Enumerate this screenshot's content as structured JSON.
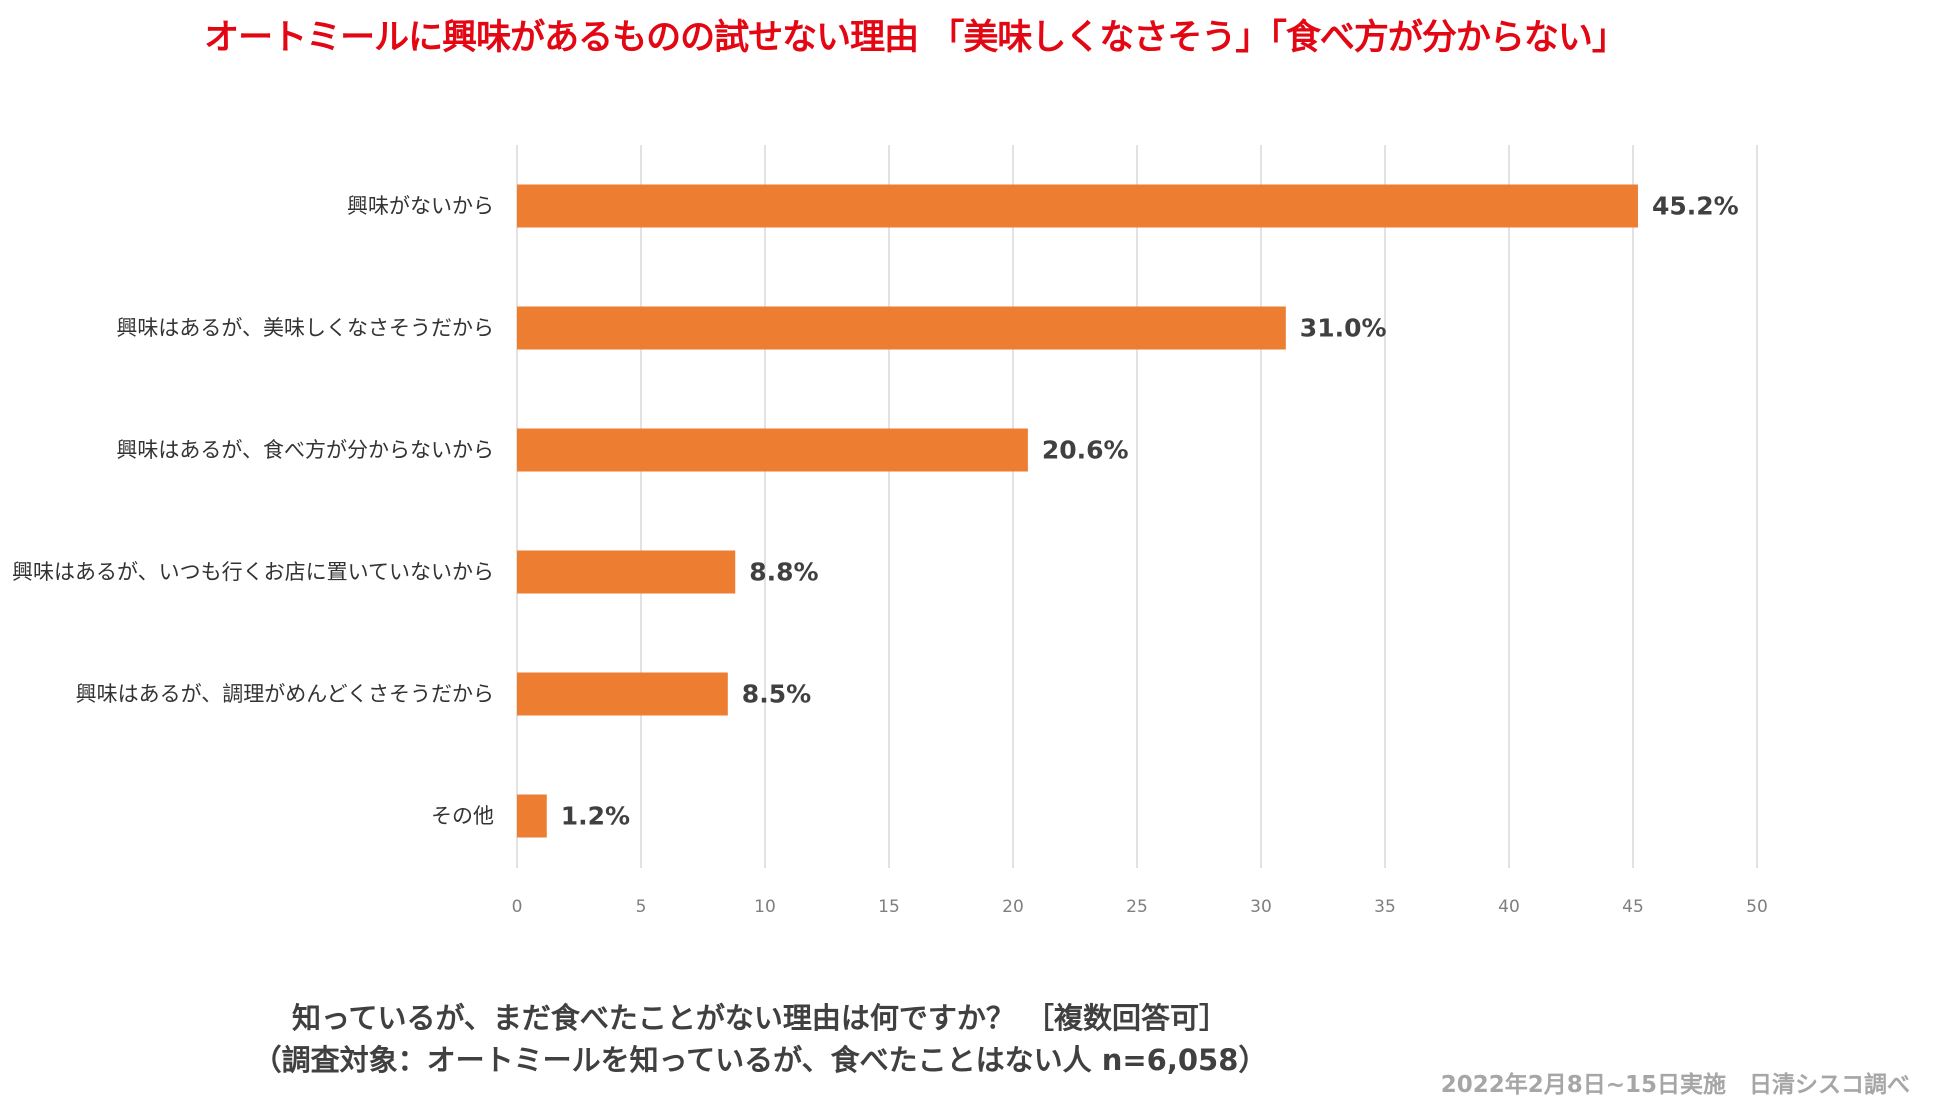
{
  "title": "オートミールに興味があるものの試せない理由 「美味しくなさそう」「食べ方が分からない」",
  "question": {
    "line1": "知っているが、まだ食べたことがない理由は何ですか？ ［複数回答可］",
    "line2": "（調査対象：オートミールを知っているが、食べたことはない人 n=6,058）"
  },
  "credit": "2022年2月8日~15日実施　日清シスコ調べ",
  "colors": {
    "bar": "#ed7d31",
    "grid": "#d9d9d9",
    "title": "#e30613"
  },
  "chart_data": {
    "type": "bar",
    "orientation": "horizontal",
    "categories": [
      "興味がないから",
      "興味はあるが、美味しくなさそうだから",
      "興味はあるが、食べ方が分からないから",
      "興味はあるが、いつも行くお店に置いていないから",
      "興味はあるが、調理がめんどくさそうだから",
      "その他"
    ],
    "values": [
      45.2,
      31.0,
      20.6,
      8.8,
      8.5,
      1.2
    ],
    "value_labels": [
      "45.2%",
      "31.0%",
      "20.6%",
      "8.8%",
      "8.5%",
      "1.2%"
    ],
    "xlim": [
      0,
      50
    ],
    "xticks": [
      0,
      5,
      10,
      15,
      20,
      25,
      30,
      35,
      40,
      45,
      50
    ],
    "tick_labels": [
      "0",
      "5",
      "10",
      "15",
      "20",
      "25",
      "30",
      "35",
      "40",
      "45",
      "50"
    ],
    "grid": true,
    "legend": "none"
  }
}
